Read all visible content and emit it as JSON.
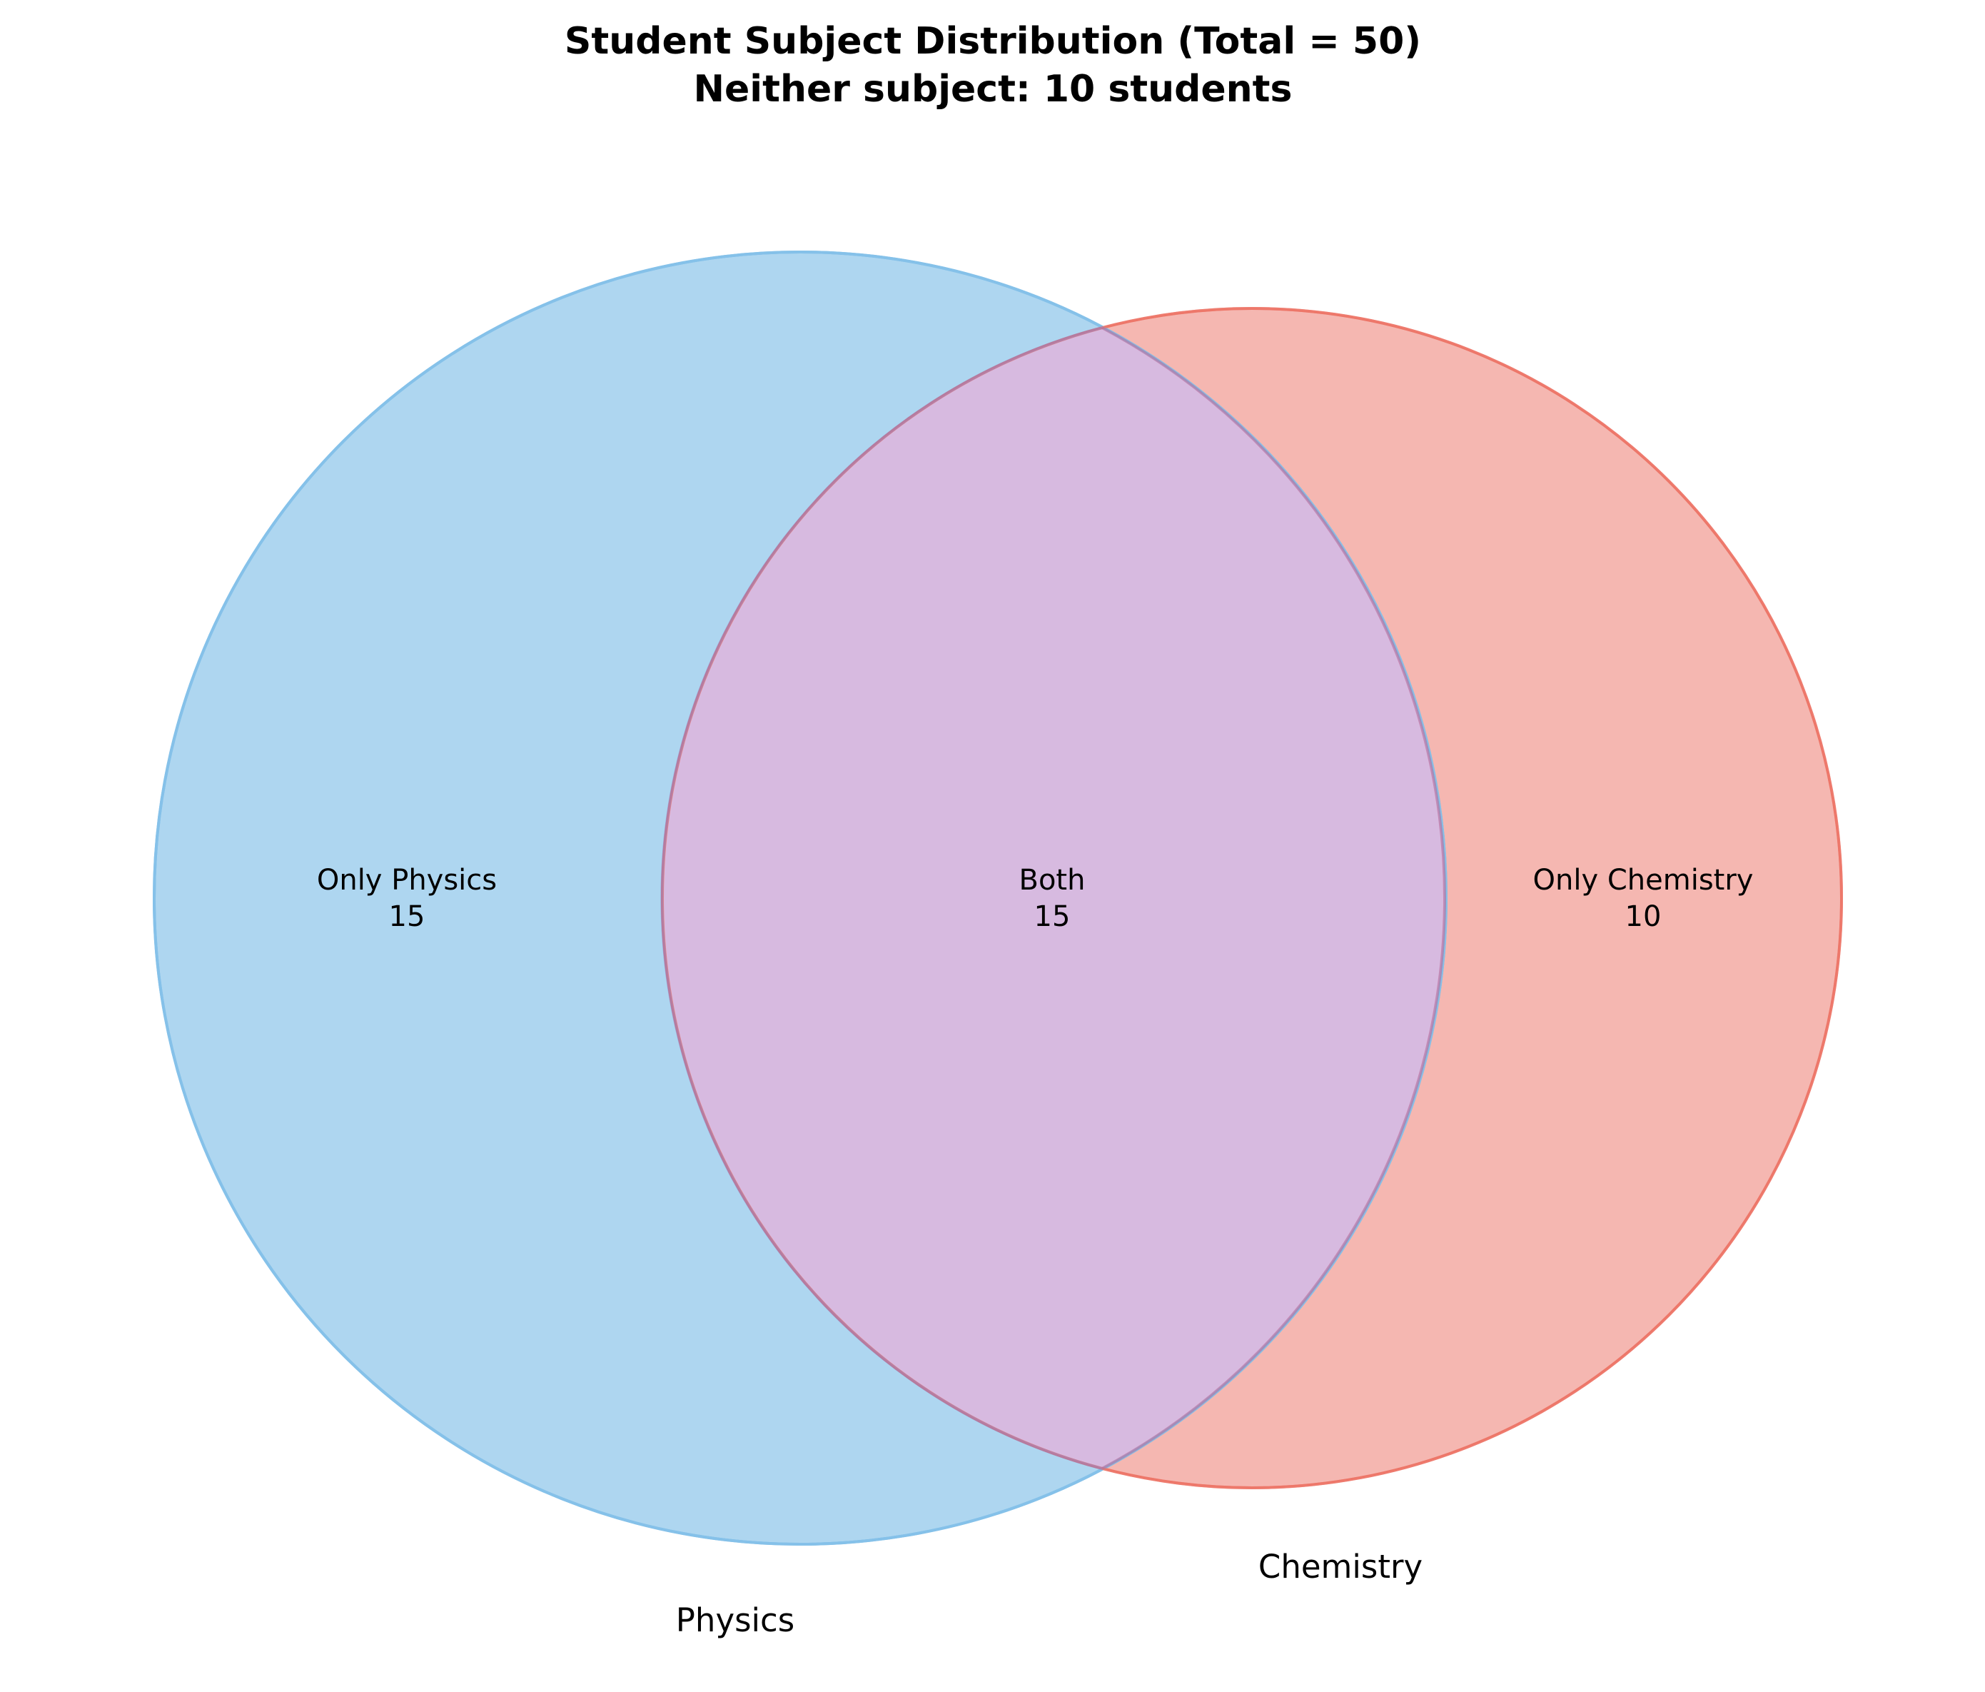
{
  "title": {
    "line1": "Student Subject Distribution (Total = 50)",
    "line2": "Neither subject: 10 students"
  },
  "sets": {
    "a": {
      "label": "Physics",
      "color": "#5DADE2"
    },
    "b": {
      "label": "Chemistry",
      "color": "#EC7063"
    }
  },
  "regions": {
    "only_a": {
      "label": "Only Physics",
      "count": "15"
    },
    "both": {
      "label": "Both",
      "count": "15"
    },
    "only_b": {
      "label": "Only Chemistry",
      "count": "10"
    }
  },
  "colors": {
    "overlap": "#D7BAE0"
  }
}
